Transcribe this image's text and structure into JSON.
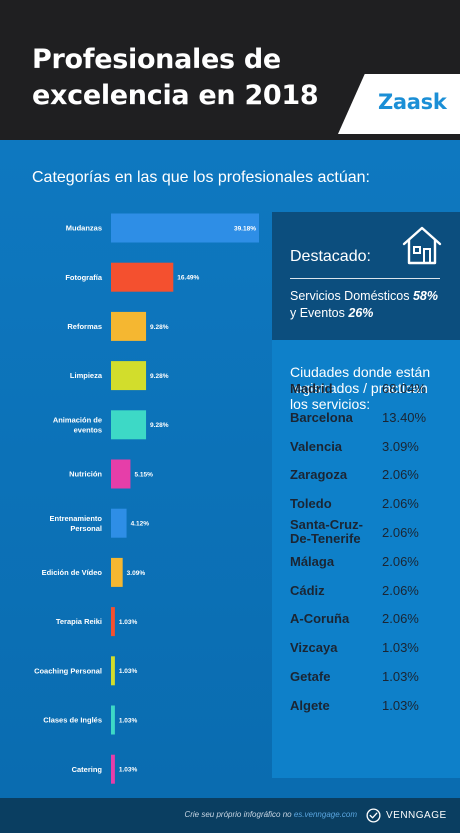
{
  "header": {
    "title_line1": "Profesionales de",
    "title_line2": "excelencia en 2018",
    "logo": "Zaask"
  },
  "subtitle": "Categorías en las que los profesionales actúan:",
  "chart_data": {
    "type": "bar",
    "orientation": "horizontal",
    "categories": [
      [
        "Mudanzas"
      ],
      [
        "Fotografía"
      ],
      [
        "Reformas"
      ],
      [
        "Limpieza"
      ],
      [
        "Animación de",
        "eventos"
      ],
      [
        "Nutrición"
      ],
      [
        "Entrenamiento",
        "Personal"
      ],
      [
        "Edición de Vídeo"
      ],
      [
        "Terapia Reiki"
      ],
      [
        "Coaching Personal"
      ],
      [
        "Clases de Inglés"
      ],
      [
        "Catering"
      ]
    ],
    "values": [
      39.18,
      16.49,
      9.28,
      9.28,
      9.28,
      5.15,
      4.12,
      3.09,
      1.03,
      1.03,
      1.03,
      1.03
    ],
    "value_labels": [
      "39.18%",
      "16.49%",
      "9.28%",
      "9.28%",
      "9.28%",
      "5.15%",
      "4.12%",
      "3.09%",
      "1.03%",
      "1.03%",
      "1.03%",
      "1.03%"
    ],
    "colors": [
      "#2e8ee6",
      "#f4502f",
      "#f5b731",
      "#d2dd2c",
      "#3dd9c6",
      "#e63ea9",
      "#2e8ee6",
      "#f5b731",
      "#f4502f",
      "#d2dd2c",
      "#3dd9c6",
      "#e63ea9"
    ],
    "xlim": [
      0,
      39.18
    ]
  },
  "highlight": {
    "title": "Destacado:",
    "line1_text": "Servicios Domésticos ",
    "line1_value": "58%",
    "line2_text": "y Eventos ",
    "line2_value": "26%",
    "icon": "house-icon"
  },
  "cities": {
    "title": "Ciudades donde están registrados / practican los servicios:",
    "rows": [
      {
        "name": "Madrid",
        "value": "68.04%"
      },
      {
        "name": "Barcelona",
        "value": "13.40%"
      },
      {
        "name": "Valencia",
        "value": "3.09%"
      },
      {
        "name": "Zaragoza",
        "value": "2.06%"
      },
      {
        "name": "Toledo",
        "value": "2.06%"
      },
      {
        "name": "Santa-Cruz-De-Tenerife",
        "value": "2.06%"
      },
      {
        "name": "Málaga",
        "value": "2.06%"
      },
      {
        "name": "Cádiz",
        "value": "2.06%"
      },
      {
        "name": "A-Coruña",
        "value": "2.06%"
      },
      {
        "name": "Vizcaya",
        "value": "1.03%"
      },
      {
        "name": "Getafe",
        "value": "1.03%"
      },
      {
        "name": "Algete",
        "value": "1.03%"
      }
    ]
  },
  "footer": {
    "text": "Crie seu próprio infográfico no ",
    "link": "es.venngage.com",
    "brand": "VENNGAGE"
  },
  "colors": {
    "background": "#0b72b9",
    "header": "#1f1f21",
    "highlight_panel": "#0c4e7e",
    "cities_panel": "#0e80c9",
    "footer": "#0a3e61"
  }
}
